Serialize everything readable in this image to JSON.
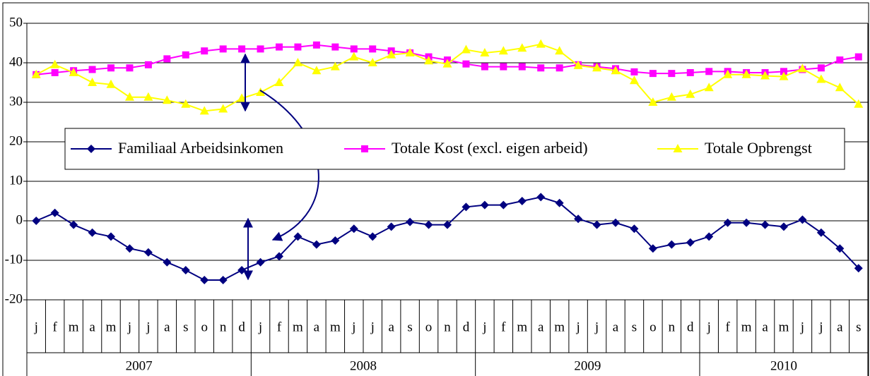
{
  "chart_data": {
    "type": "line",
    "categories": [
      "j",
      "f",
      "m",
      "a",
      "m",
      "j",
      "j",
      "a",
      "s",
      "o",
      "n",
      "d",
      "j",
      "f",
      "m",
      "a",
      "m",
      "j",
      "j",
      "a",
      "s",
      "o",
      "n",
      "d",
      "j",
      "f",
      "m",
      "a",
      "m",
      "j",
      "j",
      "a",
      "s",
      "o",
      "n",
      "d",
      "j",
      "f",
      "m",
      "a",
      "m",
      "j",
      "j",
      "a",
      "s"
    ],
    "years": [
      "2007",
      "2008",
      "2009",
      "2010"
    ],
    "series": [
      {
        "name": "Familiaal Arbeidsinkomen",
        "color": "#000080",
        "marker": "diamond",
        "values": [
          0,
          2,
          -1,
          -3,
          -4,
          -7,
          -8,
          -10.5,
          -12.5,
          -15,
          -15,
          -12.5,
          -10.5,
          -9,
          -4,
          -6,
          -5,
          -2,
          -4,
          -1.5,
          -0.3,
          -1,
          -1,
          3.5,
          4,
          4,
          5,
          6,
          4.5,
          0.5,
          -1,
          -0.5,
          -2,
          -7,
          -6,
          -5.5,
          -4,
          -0.5,
          -0.5,
          -1,
          -1.5,
          0.3,
          -3,
          -7,
          -12
        ]
      },
      {
        "name": "Totale Kost (excl. eigen arbeid)",
        "color": "#ff00ff",
        "marker": "square",
        "values": [
          37,
          37.5,
          38,
          38.3,
          38.7,
          38.7,
          39.5,
          41,
          42,
          43,
          43.5,
          43.5,
          43.5,
          44,
          44,
          44.5,
          44,
          43.5,
          43.5,
          43,
          42.5,
          41.5,
          40.7,
          39.7,
          39,
          39,
          39,
          38.7,
          38.7,
          39.5,
          39,
          38.5,
          37.7,
          37.3,
          37.3,
          37.5,
          37.8,
          37.8,
          37.5,
          37.5,
          37.8,
          38.3,
          38.7,
          40.7,
          41.5
        ]
      },
      {
        "name": "Totale Opbrengst",
        "color": "#ffff00",
        "marker": "triangle",
        "values": [
          37,
          39.5,
          37.5,
          35,
          34.5,
          31.3,
          31.3,
          30.5,
          29.5,
          27.8,
          28.3,
          31,
          32.5,
          35,
          40,
          38,
          39,
          41.5,
          40,
          42,
          42.5,
          40.5,
          39.7,
          43.3,
          42.5,
          43,
          43.7,
          44.7,
          43,
          39.3,
          38.7,
          38,
          35.5,
          30,
          31.3,
          32,
          33.7,
          37,
          37,
          36.7,
          36.5,
          38.5,
          35.8,
          33.7,
          29.5
        ]
      }
    ],
    "ylim": [
      -20,
      50
    ],
    "yticks": [
      -20,
      -10,
      0,
      10,
      20,
      30,
      40,
      50
    ],
    "grid": true
  }
}
